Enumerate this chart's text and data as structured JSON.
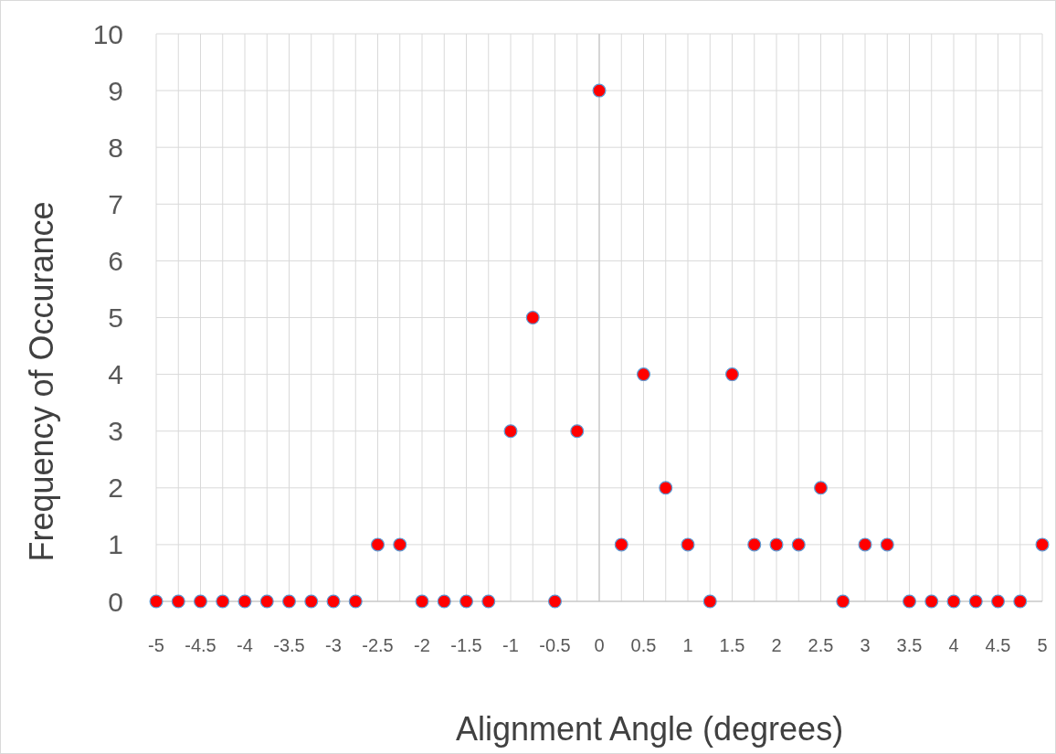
{
  "chart_data": {
    "type": "scatter",
    "xlabel": "Alignment Angle (degrees)",
    "ylabel": "Frequency of Occurance",
    "x": [
      -5,
      -4.75,
      -4.5,
      -4.25,
      -4,
      -3.75,
      -3.5,
      -3.25,
      -3,
      -2.75,
      -2.5,
      -2.25,
      -2,
      -1.75,
      -1.5,
      -1.25,
      -1,
      -0.75,
      -0.5,
      -0.25,
      0,
      0.25,
      0.5,
      0.75,
      1,
      1.25,
      1.5,
      1.75,
      2,
      2.25,
      2.5,
      2.75,
      3,
      3.25,
      3.5,
      3.75,
      4,
      4.25,
      4.5,
      4.75,
      5
    ],
    "series": [
      {
        "color": "#ff0000",
        "values": [
          0,
          0,
          0,
          0,
          0,
          0,
          0,
          0,
          0,
          0,
          1,
          1,
          0,
          0,
          0,
          0,
          3,
          5,
          0,
          3,
          9,
          1,
          4,
          2,
          1,
          0,
          4,
          1,
          1,
          1,
          2,
          0,
          1,
          1,
          0,
          0,
          0,
          0,
          0,
          0,
          1
        ]
      }
    ],
    "marker": "circle",
    "grid": true,
    "xlim": [
      -5,
      5
    ],
    "xticks": [
      -5,
      {
        "value": -4.75,
        "label": null
      },
      -4.5,
      {
        "value": -4.25,
        "label": null
      },
      -4,
      {
        "value": -3.75,
        "label": null
      },
      -3.5,
      {
        "value": -3.25,
        "label": null
      },
      -3,
      {
        "value": -2.75,
        "label": null
      },
      -2.5,
      {
        "value": -2.25,
        "label": null
      },
      -2,
      {
        "value": -1.75,
        "label": null
      },
      -1.5,
      {
        "value": -1.25,
        "label": null
      },
      -1,
      {
        "value": -0.75,
        "label": null
      },
      -0.5,
      {
        "value": -0.25,
        "label": null
      },
      0,
      {
        "value": 0.25,
        "label": null
      },
      0.5,
      {
        "value": 0.75,
        "label": null
      },
      1,
      {
        "value": 1.25,
        "label": null
      },
      1.5,
      {
        "value": 1.75,
        "label": null
      },
      2,
      {
        "value": 2.25,
        "label": null
      },
      2.5,
      {
        "value": 2.75,
        "label": null
      },
      3,
      {
        "value": 3.25,
        "label": null
      },
      3.5,
      {
        "value": 3.75,
        "label": null
      },
      4,
      {
        "value": 4.25,
        "label": null
      },
      4.5,
      {
        "value": 4.75,
        "label": null
      },
      5
    ],
    "ylim": [
      0,
      10
    ],
    "yticks": [
      0,
      1,
      2,
      3,
      4,
      5,
      6,
      7,
      8,
      9,
      10
    ]
  }
}
